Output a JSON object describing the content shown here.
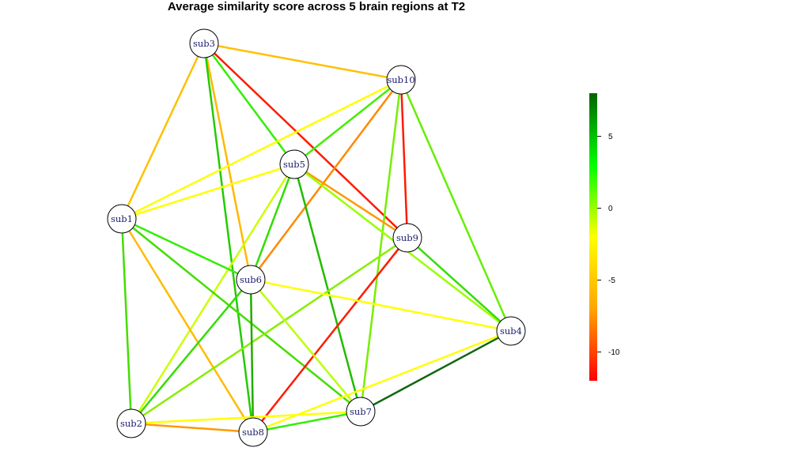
{
  "title": "Average similarity score across 5 brain regions at T2",
  "nodes": [
    {
      "id": "sub3",
      "label": "sub3"
    },
    {
      "id": "sub10",
      "label": "sub10"
    },
    {
      "id": "sub5",
      "label": "sub5"
    },
    {
      "id": "sub1",
      "label": "sub1"
    },
    {
      "id": "sub9",
      "label": "sub9"
    },
    {
      "id": "sub6",
      "label": "sub6"
    },
    {
      "id": "sub4",
      "label": "sub4"
    },
    {
      "id": "sub2",
      "label": "sub2"
    },
    {
      "id": "sub7",
      "label": "sub7"
    },
    {
      "id": "sub8",
      "label": "sub8"
    }
  ],
  "edges": [
    {
      "from": "sub3",
      "to": "sub10",
      "color": "#ffc000"
    },
    {
      "from": "sub3",
      "to": "sub1",
      "color": "#ffc000"
    },
    {
      "from": "sub3",
      "to": "sub5",
      "color": "#33ee00"
    },
    {
      "from": "sub3",
      "to": "sub9",
      "color": "#ff1a00"
    },
    {
      "from": "sub3",
      "to": "sub6",
      "color": "#ffb800"
    },
    {
      "from": "sub3",
      "to": "sub8",
      "color": "#22cc00"
    },
    {
      "from": "sub10",
      "to": "sub5",
      "color": "#44ee00"
    },
    {
      "from": "sub10",
      "to": "sub1",
      "color": "#ffff00"
    },
    {
      "from": "sub10",
      "to": "sub9",
      "color": "#ff1a00"
    },
    {
      "from": "sub10",
      "to": "sub6",
      "color": "#ff8800"
    },
    {
      "from": "sub10",
      "to": "sub4",
      "color": "#66ee00"
    },
    {
      "from": "sub10",
      "to": "sub7",
      "color": "#77ee00"
    },
    {
      "from": "sub5",
      "to": "sub1",
      "color": "#ffff00"
    },
    {
      "from": "sub5",
      "to": "sub9",
      "color": "#ff9900"
    },
    {
      "from": "sub5",
      "to": "sub6",
      "color": "#33dd00"
    },
    {
      "from": "sub5",
      "to": "sub7",
      "color": "#22bb00"
    },
    {
      "from": "sub5",
      "to": "sub2",
      "color": "#ccff00"
    },
    {
      "from": "sub5",
      "to": "sub4",
      "color": "#99ff00"
    },
    {
      "from": "sub1",
      "to": "sub6",
      "color": "#33ee00"
    },
    {
      "from": "sub1",
      "to": "sub7",
      "color": "#44dd00"
    },
    {
      "from": "sub1",
      "to": "sub8",
      "color": "#ffbb00"
    },
    {
      "from": "sub1",
      "to": "sub2",
      "color": "#44dd00"
    },
    {
      "from": "sub9",
      "to": "sub4",
      "color": "#33dd00"
    },
    {
      "from": "sub9",
      "to": "sub2",
      "color": "#88ee00"
    },
    {
      "from": "sub9",
      "to": "sub8",
      "color": "#ff1a00"
    },
    {
      "from": "sub6",
      "to": "sub4",
      "color": "#ffff00"
    },
    {
      "from": "sub6",
      "to": "sub8",
      "color": "#22aa00"
    },
    {
      "from": "sub6",
      "to": "sub7",
      "color": "#bbff00"
    },
    {
      "from": "sub6",
      "to": "sub2",
      "color": "#33dd00"
    },
    {
      "from": "sub4",
      "to": "sub7",
      "color": "#116611"
    },
    {
      "from": "sub4",
      "to": "sub8",
      "color": "#ffff00"
    },
    {
      "from": "sub2",
      "to": "sub8",
      "color": "#ff9900"
    },
    {
      "from": "sub2",
      "to": "sub7",
      "color": "#ffff00"
    },
    {
      "from": "sub8",
      "to": "sub7",
      "color": "#33ee00"
    }
  ],
  "colorbar": {
    "min": -12,
    "max": 8,
    "ticks": [
      5,
      0,
      -5,
      -10
    ],
    "tick_labels": [
      "5",
      "0",
      "-5",
      "-10"
    ],
    "gradient": [
      "#ff0000",
      "#ffa500",
      "#ffff00",
      "#00ff00",
      "#006400"
    ]
  }
}
